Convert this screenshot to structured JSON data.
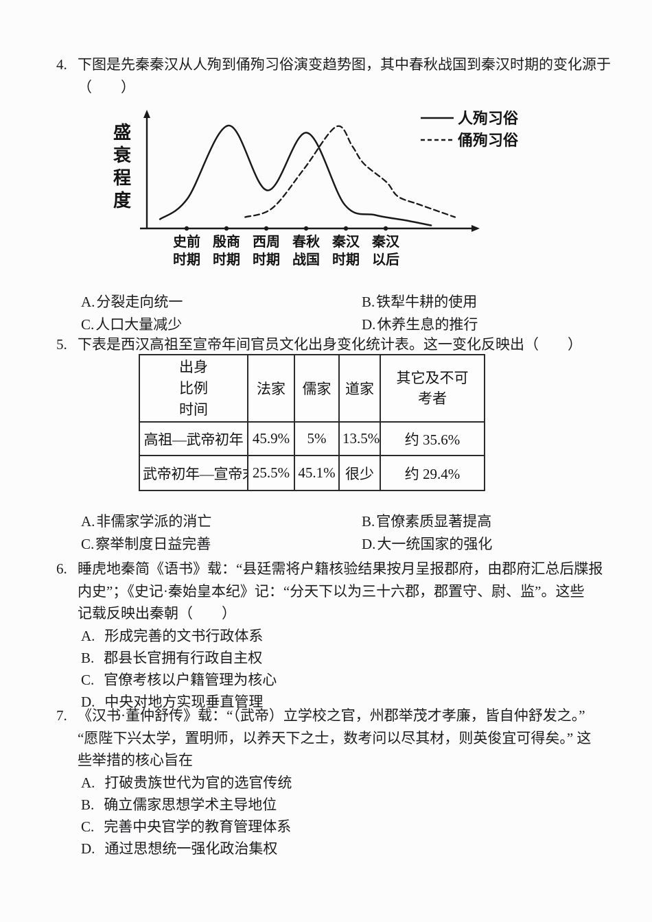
{
  "questions": {
    "q4": {
      "number": "4.",
      "stem_line1": "下图是先秦秦汉从人殉到俑殉习俗演变趋势图，其中春秋战国到秦汉时期的变化源于",
      "stem_line2": "（　　）",
      "options": [
        {
          "label": "A.",
          "text": "分裂走向统一"
        },
        {
          "label": "B.",
          "text": "铁犁牛耕的使用"
        },
        {
          "label": "C.",
          "text": "人口大量减少"
        },
        {
          "label": "D.",
          "text": "休养生息的推行"
        }
      ]
    },
    "q5": {
      "number": "5.",
      "stem": "下表是西汉高祖至宣帝年间官员文化出身变化统计表。这一变化反映出（　　）",
      "options": [
        {
          "label": "A.",
          "text": "非儒家学派的消亡"
        },
        {
          "label": "B.",
          "text": "官僚素质显著提高"
        },
        {
          "label": "C.",
          "text": "察举制度日益完善"
        },
        {
          "label": "D.",
          "text": "大一统国家的强化"
        }
      ]
    },
    "q6": {
      "number": "6.",
      "stem_lines": [
        "睡虎地秦简《语书》载：“县廷需将户籍核验结果按月呈报郡府，由郡府汇总后牒报",
        "内史”；《史记·秦始皇本纪》记：“分天下以为三十六郡，郡置守、尉、监”。这些",
        "记载反映出秦朝（　　）"
      ],
      "options": [
        {
          "label": "A.",
          "text": "形成完善的文书行政体系"
        },
        {
          "label": "B.",
          "text": "郡县长官拥有行政自主权"
        },
        {
          "label": "C.",
          "text": "官僚考核以户籍管理为核心"
        },
        {
          "label": "D.",
          "text": "中央对地方实现垂直管理"
        }
      ]
    },
    "q7": {
      "number": "7.",
      "stem_lines": [
        "《汉书·董仲舒传》载：“（武帝）立学校之官，州郡举茂才孝廉，皆自仲舒发之。”",
        "“愿陛下兴太学，置明师，以养天下之士，数考问以尽其材，则英俊宜可得矣。”  这",
        "些举措的核心旨在"
      ],
      "options": [
        {
          "label": "A.",
          "text": "打破贵族世代为官的选官传统"
        },
        {
          "label": "B.",
          "text": "确立儒家思想学术主导地位"
        },
        {
          "label": "C.",
          "text": "完善中央官学的教育管理体系"
        },
        {
          "label": "D.",
          "text": "通过思想统一强化政治集权"
        }
      ]
    }
  },
  "chart_data": {
    "type": "line",
    "title": "",
    "xlabel": "",
    "ylabel": "盛衰程度",
    "y_axis_note": "qualitative axis, no numeric ticks; values below are relative intensity 0-100",
    "grid": false,
    "legend_position": "top-right",
    "categories": [
      "史前时期",
      "殷商时期",
      "西周时期",
      "春秋战国",
      "秦汉时期",
      "秦汉以后"
    ],
    "category_lines": [
      [
        "史前",
        "时期"
      ],
      [
        "殷商",
        "时期"
      ],
      [
        "西周",
        "时期"
      ],
      [
        "春秋",
        "战国"
      ],
      [
        "秦汉",
        "时期"
      ],
      [
        "秦汉",
        "以后"
      ]
    ],
    "series": [
      {
        "name": "人殉习俗",
        "line_style": "solid",
        "values_at_categories": [
          29,
          100,
          37,
          93,
          23,
          8
        ],
        "points": [
          [
            -0.67,
            9
          ],
          [
            0.02,
            29
          ],
          [
            1.05,
            100
          ],
          [
            2.03,
            37
          ],
          [
            3.02,
            93
          ],
          [
            3.97,
            23
          ],
          [
            4.74,
            13
          ],
          [
            5.48,
            8
          ],
          [
            6.14,
            3
          ]
        ]
      },
      {
        "name": "俑殉习俗",
        "line_style": "dashed",
        "values_at_categories": [
          null,
          null,
          15,
          60,
          85,
          45
        ],
        "points": [
          [
            1.47,
            11
          ],
          [
            2.16,
            20
          ],
          [
            2.95,
            58
          ],
          [
            3.76,
            99
          ],
          [
            4.16,
            80
          ],
          [
            4.45,
            63
          ],
          [
            5.02,
            45
          ],
          [
            5.31,
            31
          ],
          [
            5.86,
            23
          ],
          [
            6.74,
            11
          ]
        ]
      }
    ]
  },
  "table": {
    "corner": [
      "出身",
      "比例",
      "时间"
    ],
    "col_headers": [
      "法家",
      "儒家",
      "道家",
      "其它及不可考者"
    ],
    "rows": [
      {
        "period": "高祖—武帝初年",
        "values": [
          "45.9%",
          "5%",
          "13.5%",
          "约 35.6%"
        ]
      },
      {
        "period": "武帝初年—宣帝末年",
        "values": [
          "25.5%",
          "45.1%",
          "很少",
          "约 29.4%"
        ]
      }
    ]
  },
  "colors": {
    "ink": "#1c1c1e",
    "chart_line": "#1a1a1a",
    "paper": "#fcfcfc"
  }
}
